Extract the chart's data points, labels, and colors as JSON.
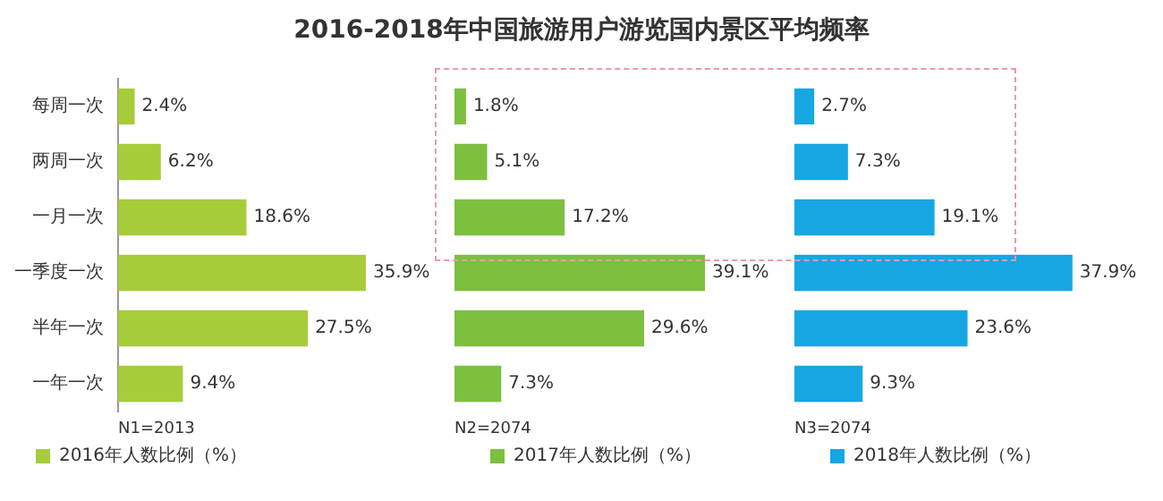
{
  "chart_data": [
    {
      "type": "bar",
      "orientation": "horizontal",
      "title": "2016-2018年中国旅游用户游览国内景区平均频率",
      "categories": [
        "每周一次",
        "两周一次",
        "一月一次",
        "一季度一次",
        "半年一次",
        "一年一次"
      ],
      "tick_labels": "y",
      "legend": "bottom left",
      "grid": false,
      "annotations": [
        "N1=2013"
      ],
      "series": [
        {
          "name": "2016年人数比例（%）",
          "color": "#a6cc3a",
          "values": [
            2.4,
            6.2,
            18.6,
            35.9,
            27.5,
            9.4
          ],
          "value_labels": [
            "2.4%",
            "6.2%",
            "18.6%",
            "35.9%",
            "27.5%",
            "9.4%"
          ]
        }
      ]
    },
    {
      "type": "bar",
      "orientation": "horizontal",
      "categories": [
        null,
        null,
        null,
        null,
        null,
        null
      ],
      "tick_labels": false,
      "legend": "bottom left",
      "grid": false,
      "annotations": [
        "N2=2074"
      ],
      "series": [
        {
          "name": "2017年人数比例（%）",
          "color": "#7dbf3f",
          "values": [
            1.8,
            5.1,
            17.2,
            39.1,
            29.6,
            7.3
          ],
          "value_labels": [
            "1.8%",
            "5.1%",
            "17.2%",
            "39.1%",
            "29.6%",
            "7.3%"
          ]
        }
      ]
    },
    {
      "type": "bar",
      "orientation": "horizontal",
      "categories": [
        null,
        null,
        null,
        null,
        null,
        null
      ],
      "tick_labels": false,
      "legend": "bottom left",
      "grid": false,
      "annotations": [
        "N3=2074"
      ],
      "series": [
        {
          "name": "2018年人数比例（%）",
          "color": "#16a6e2",
          "values": [
            2.7,
            7.3,
            19.1,
            37.9,
            23.6,
            9.3
          ],
          "value_labels": [
            "2.7%",
            "7.3%",
            "19.1%",
            "37.9%",
            "23.6%",
            "9.3%"
          ]
        }
      ]
    }
  ]
}
